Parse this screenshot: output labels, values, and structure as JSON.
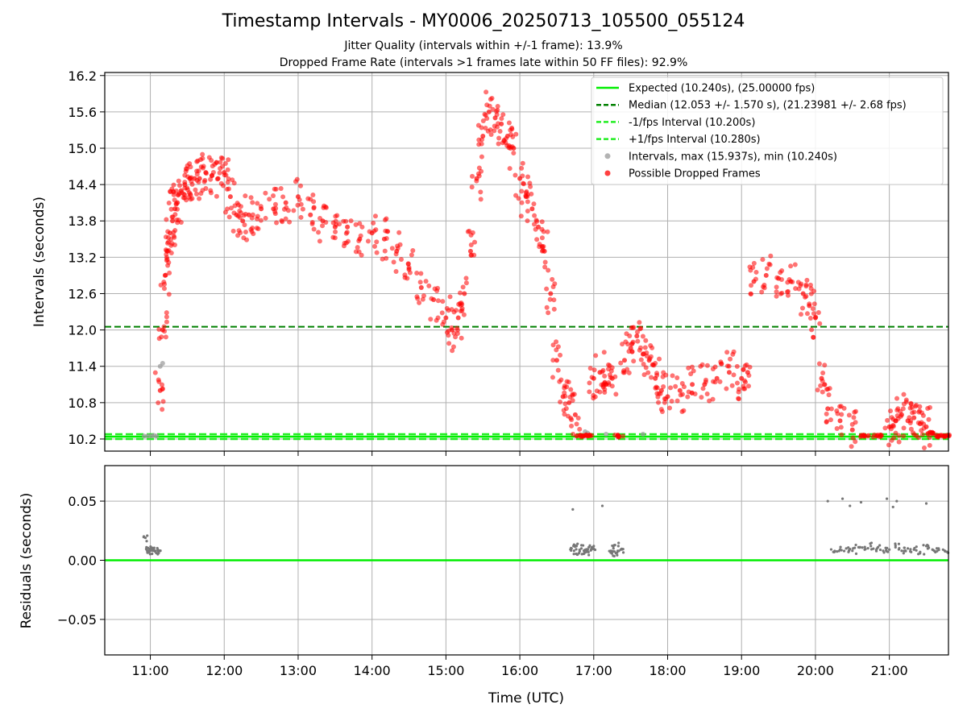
{
  "title": "Timestamp Intervals - MY0006_20250713_105500_055124",
  "subtitle_1": "Jitter Quality (intervals within +/-1 frame): 13.9%",
  "subtitle_2": "Dropped Frame Rate (intervals >1 frames late within 50 FF files): 92.9%",
  "colors": {
    "expected": "#00ee00",
    "median": "#008000",
    "fps_band": "#22ee22",
    "normal": "#999999",
    "dropped": "#ff0000",
    "residual": "#777777"
  },
  "chart_data": [
    {
      "type": "scatter",
      "title": "",
      "xlabel": "",
      "ylabel": "Intervals (seconds)",
      "xlim": [
        "10:23",
        "21:48"
      ],
      "ylim": [
        10.0,
        16.25
      ],
      "x_ticks": [
        "11:00",
        "12:00",
        "13:00",
        "14:00",
        "15:00",
        "16:00",
        "17:00",
        "18:00",
        "19:00",
        "20:00",
        "21:00"
      ],
      "y_ticks": [
        "10.2",
        "10.8",
        "11.4",
        "12.0",
        "12.6",
        "13.2",
        "13.8",
        "14.4",
        "15.0",
        "15.6",
        "16.2"
      ],
      "grid": true,
      "legend_position": "top-right",
      "legend": [
        "Expected (10.240s), (25.00000 fps)",
        "Median (12.053 +/- 1.570 s), (21.23981 +/- 2.68 fps)",
        "-1/fps Interval (10.200s)",
        "+1/fps Interval (10.280s)",
        "Intervals, max (15.937s), min (10.240s)",
        "Possible Dropped Frames"
      ],
      "hlines": [
        {
          "name": "Expected (10.240s), (25.00000 fps)",
          "y": 10.24,
          "style": "solid"
        },
        {
          "name": "Median (12.053 +/- 1.570 s), (21.23981 +/- 2.68 fps)",
          "y": 12.053,
          "style": "dashed"
        },
        {
          "name": "-1/fps Interval (10.200s)",
          "y": 10.2,
          "style": "dashed"
        },
        {
          "name": "+1/fps Interval (10.280s)",
          "y": 10.28,
          "style": "dashed"
        }
      ],
      "series": [
        {
          "name": "Intervals, max (15.937s), min (10.240s)",
          "x": [
            "10:55",
            "10:58",
            "11:01",
            "11:03",
            "11:05",
            "11:08",
            "11:10",
            "16:53",
            "16:55",
            "17:10",
            "17:40"
          ],
          "y": [
            10.25,
            10.25,
            10.25,
            10.26,
            10.25,
            11.4,
            11.45,
            10.32,
            10.3,
            10.28,
            10.28
          ]
        },
        {
          "name": "Possible Dropped Frames",
          "x": [
            "11:08",
            "11:10",
            "11:12",
            "11:14",
            "11:16",
            "11:18",
            "11:20",
            "11:22",
            "11:25",
            "11:28",
            "11:32",
            "11:36",
            "11:40",
            "11:45",
            "11:50",
            "11:55",
            "12:00",
            "12:05",
            "12:10",
            "12:15",
            "12:20",
            "12:30",
            "12:40",
            "12:50",
            "13:00",
            "13:10",
            "13:20",
            "13:30",
            "13:40",
            "13:50",
            "14:00",
            "14:10",
            "14:20",
            "14:30",
            "14:40",
            "14:50",
            "15:00",
            "15:05",
            "15:10",
            "15:15",
            "15:20",
            "15:25",
            "15:30",
            "15:35",
            "15:40",
            "15:45",
            "15:50",
            "15:55",
            "16:00",
            "16:05",
            "16:10",
            "16:15",
            "16:20",
            "16:25",
            "16:30",
            "16:35",
            "16:40",
            "16:45",
            "16:50",
            "16:55",
            "17:00",
            "17:05",
            "17:10",
            "17:15",
            "17:20",
            "17:25",
            "17:30",
            "17:35",
            "17:40",
            "17:45",
            "17:50",
            "17:55",
            "18:00",
            "18:10",
            "18:20",
            "18:30",
            "18:40",
            "18:50",
            "19:00",
            "19:05",
            "19:10",
            "19:20",
            "19:30",
            "19:40",
            "19:50",
            "19:55",
            "20:00",
            "20:05",
            "20:10",
            "20:20",
            "20:30",
            "20:40",
            "20:50",
            "21:00",
            "21:05",
            "21:10",
            "21:15",
            "21:20",
            "21:25",
            "21:30",
            "21:35",
            "21:40",
            "21:45"
          ],
          "y": [
            11.0,
            12.0,
            12.9,
            13.3,
            13.6,
            13.8,
            14.0,
            14.1,
            14.3,
            14.4,
            14.5,
            14.5,
            14.5,
            14.6,
            14.55,
            14.5,
            14.6,
            14.2,
            13.9,
            13.8,
            13.9,
            14.0,
            14.0,
            14.1,
            14.2,
            13.9,
            13.8,
            13.7,
            13.7,
            13.5,
            13.6,
            13.5,
            13.3,
            13.0,
            12.7,
            12.5,
            12.2,
            12.0,
            12.2,
            12.6,
            13.3,
            14.5,
            15.2,
            15.6,
            15.5,
            15.4,
            15.2,
            15.0,
            14.5,
            14.2,
            14.0,
            13.7,
            13.3,
            12.6,
            11.5,
            10.9,
            10.8,
            10.6,
            10.25,
            10.25,
            11.2,
            11.3,
            11.1,
            11.2,
            10.25,
            11.5,
            11.7,
            11.9,
            11.6,
            11.5,
            11.2,
            11.0,
            10.9,
            11.0,
            11.1,
            11.1,
            11.2,
            11.3,
            11.2,
            11.3,
            12.8,
            12.9,
            12.85,
            12.8,
            12.6,
            12.4,
            12.2,
            11.2,
            10.7,
            10.5,
            10.35,
            10.25,
            10.25,
            10.4,
            10.5,
            10.6,
            10.5,
            10.55,
            10.45,
            10.4,
            10.3,
            10.25,
            10.25
          ]
        }
      ]
    },
    {
      "type": "scatter",
      "title": "",
      "xlabel": "Time (UTC)",
      "ylabel": "Residuals (seconds)",
      "xlim": [
        "10:23",
        "21:48"
      ],
      "ylim": [
        -0.08,
        0.08
      ],
      "x_ticks": [
        "11:00",
        "12:00",
        "13:00",
        "14:00",
        "15:00",
        "16:00",
        "17:00",
        "18:00",
        "19:00",
        "20:00",
        "21:00"
      ],
      "y_ticks": [
        "0.05",
        "0.00",
        "−0.05"
      ],
      "grid": true,
      "hlines": [
        {
          "name": "zero",
          "y": 0.0,
          "style": "solid"
        }
      ],
      "series": [
        {
          "name": "",
          "x": [
            "10:56",
            "10:57",
            "10:58",
            "11:00",
            "11:02",
            "11:04",
            "11:06",
            "11:08",
            "16:42",
            "16:44",
            "16:46",
            "16:48",
            "16:50",
            "16:52",
            "16:54",
            "16:56",
            "16:58",
            "17:00",
            "16:43",
            "17:07",
            "17:14",
            "17:16",
            "17:18",
            "17:20",
            "17:22",
            "20:10",
            "20:20",
            "20:25",
            "20:30",
            "20:35",
            "20:40",
            "20:45",
            "20:50",
            "20:55",
            "21:00",
            "21:05",
            "21:10",
            "21:15",
            "21:20",
            "21:25",
            "21:30",
            "21:35",
            "21:40",
            "21:45",
            "20:15",
            "20:22",
            "20:28",
            "20:37",
            "20:58",
            "21:03",
            "21:06",
            "21:30"
          ],
          "y": [
            0.019,
            0.009,
            0.008,
            0.008,
            0.008,
            0.008,
            0.008,
            0.008,
            0.01,
            0.008,
            0.012,
            0.006,
            0.01,
            0.008,
            0.007,
            0.011,
            0.009,
            0.012,
            0.043,
            0.046,
            0.008,
            0.01,
            0.006,
            0.012,
            0.009,
            0.05,
            0.009,
            0.01,
            0.008,
            0.011,
            0.009,
            0.012,
            0.01,
            0.008,
            0.009,
            0.011,
            0.008,
            0.01,
            0.009,
            0.007,
            0.012,
            0.009,
            0.01,
            0.008,
            0.007,
            0.052,
            0.046,
            0.049,
            0.052,
            0.045,
            0.05,
            0.048
          ]
        }
      ]
    }
  ]
}
